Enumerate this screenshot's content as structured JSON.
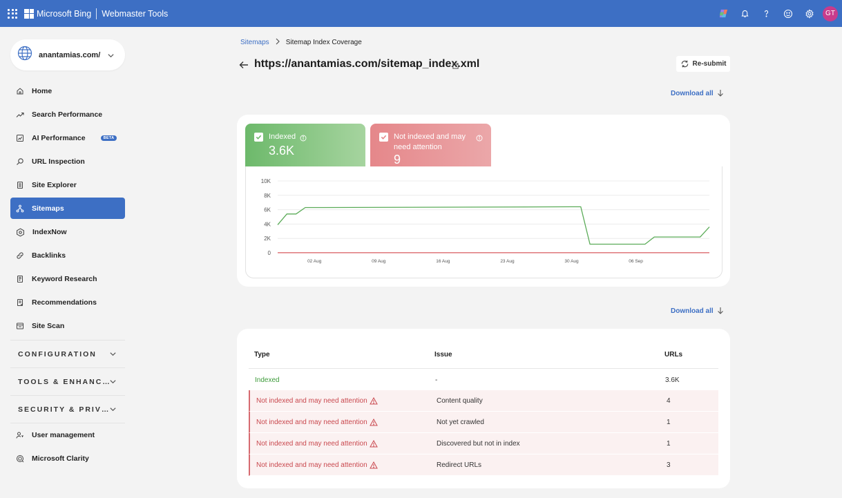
{
  "topbar": {
    "brand": "Microsoft Bing",
    "product": "Webmaster Tools",
    "icons": [
      "copilot-icon",
      "bell-icon",
      "help-icon",
      "smiley-icon",
      "gear-icon"
    ],
    "avatar_initials": "GT"
  },
  "site": {
    "name": "anantamias.com/"
  },
  "sidebar": {
    "items": [
      {
        "label": "Home",
        "icon": "home-icon"
      },
      {
        "label": "Search Performance",
        "icon": "trend-icon"
      },
      {
        "label": "AI Performance",
        "icon": "ai-icon",
        "badge": "BETA"
      },
      {
        "label": "URL Inspection",
        "icon": "magnifier-icon"
      },
      {
        "label": "Site Explorer",
        "icon": "document-icon"
      },
      {
        "label": "Sitemaps",
        "icon": "sitemap-icon",
        "active": true
      },
      {
        "label": "IndexNow",
        "icon": "indexnow-icon"
      },
      {
        "label": "Backlinks",
        "icon": "link-icon"
      },
      {
        "label": "Keyword Research",
        "icon": "notebook-icon"
      },
      {
        "label": "Recommendations",
        "icon": "checklist-icon"
      },
      {
        "label": "Site Scan",
        "icon": "scan-icon"
      }
    ],
    "groups": [
      {
        "label": "CONFIGURATION"
      },
      {
        "label": "TOOLS & ENHANC…"
      },
      {
        "label": "SECURITY & PRIV…"
      }
    ],
    "bottom_items": [
      {
        "label": "User management",
        "icon": "user-key-icon"
      },
      {
        "label": "Microsoft Clarity",
        "icon": "clarity-icon"
      }
    ]
  },
  "breadcrumb": {
    "parent": "Sitemaps",
    "current": "Sitemap Index Coverage"
  },
  "page": {
    "title": "https://anantamias.com/sitemap_index.xml",
    "resubmit_label": "Re-submit",
    "download_label": "Download all"
  },
  "tiles": {
    "indexed": {
      "label": "Indexed",
      "value": "3.6K",
      "color": "#6db96b"
    },
    "not_indexed": {
      "label": "Not indexed and may need attention",
      "value": "9",
      "color": "#e5878a"
    }
  },
  "chart_data": {
    "type": "line",
    "x": [
      "2024-07-29",
      "2024-07-30",
      "2024-07-31",
      "2024-08-01",
      "2024-08-02",
      "2024-08-03",
      "2024-08-30",
      "2024-08-31",
      "2024-09-01",
      "2024-09-04",
      "2024-09-07",
      "2024-09-08",
      "2024-09-13",
      "2024-09-14"
    ],
    "x_tick_labels": [
      "02 Aug",
      "09 Aug",
      "16 Aug",
      "23 Aug",
      "30 Aug",
      "06 Sep"
    ],
    "y_tick_labels": [
      "0",
      "2K",
      "4K",
      "6K",
      "8K",
      "10K"
    ],
    "ylim": [
      0,
      10000
    ],
    "series": [
      {
        "name": "Indexed",
        "color": "#5aab57",
        "values": [
          3900,
          5400,
          5400,
          6300,
          6300,
          6300,
          6400,
          6400,
          1200,
          1200,
          1200,
          2200,
          2200,
          3600
        ]
      },
      {
        "name": "Not indexed and may need attention",
        "color": "#d9585e",
        "values": [
          9,
          9,
          9,
          9,
          9,
          9,
          9,
          9,
          9,
          9,
          9,
          9,
          9,
          9
        ]
      }
    ],
    "grid": true,
    "legend": "none"
  },
  "table": {
    "headers": {
      "type": "Type",
      "issue": "Issue",
      "urls": "URLs"
    },
    "rows": [
      {
        "type": "Indexed",
        "issue": "-",
        "urls": "3.6K",
        "status": "good"
      },
      {
        "type": "Not indexed and may need attention",
        "issue": "Content quality",
        "urls": "4",
        "status": "bad"
      },
      {
        "type": "Not indexed and may need attention",
        "issue": "Not yet crawled",
        "urls": "1",
        "status": "bad"
      },
      {
        "type": "Not indexed and may need attention",
        "issue": "Discovered but not in index",
        "urls": "1",
        "status": "bad"
      },
      {
        "type": "Not indexed and may need attention",
        "issue": "Redirect URLs",
        "urls": "3",
        "status": "bad"
      }
    ]
  }
}
